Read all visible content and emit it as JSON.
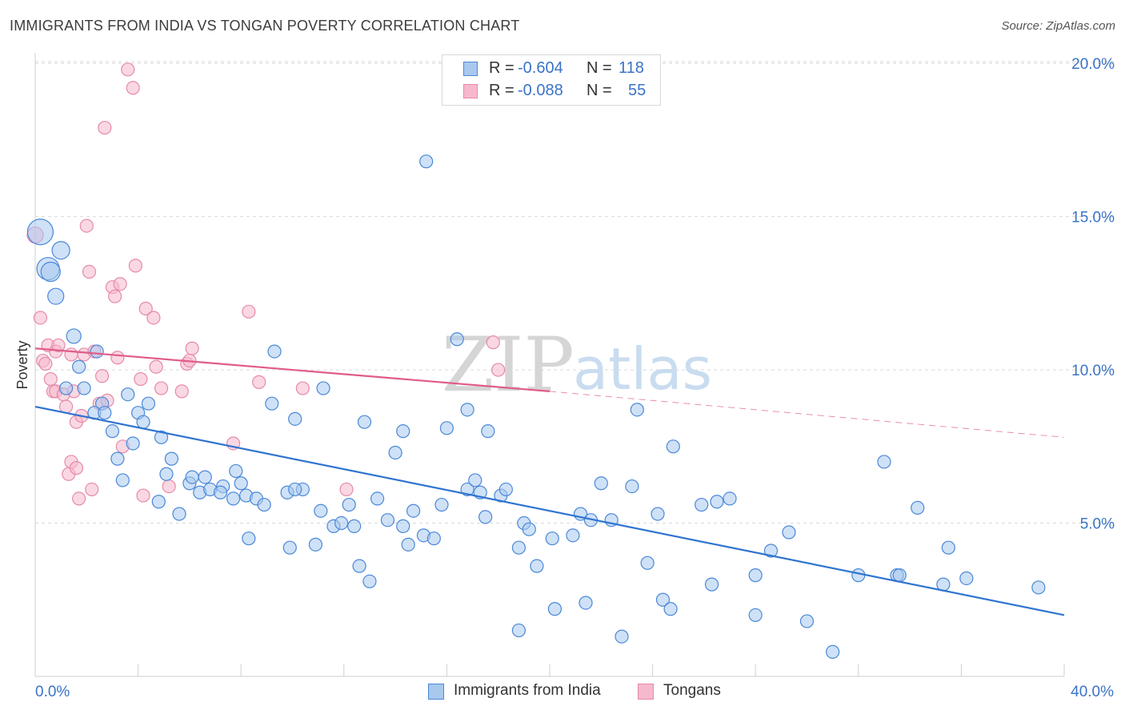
{
  "header": {
    "title": "IMMIGRANTS FROM INDIA VS TONGAN POVERTY CORRELATION CHART",
    "source": "Source: ZipAtlas.com"
  },
  "watermark": {
    "zip": "ZIP",
    "atlas": "atlas"
  },
  "legend_top": {
    "rows": [
      {
        "r_label": "R =",
        "r_value": "-0.604",
        "n_label": "N =",
        "n_value": "118"
      },
      {
        "r_label": "R =",
        "r_value": "-0.088",
        "n_label": "N =",
        "n_value": "55"
      }
    ]
  },
  "legend_bottom": {
    "india": "Immigrants from India",
    "tongans": "Tongans"
  },
  "colors": {
    "india_fill": "#a8c8ee",
    "india_stroke": "#4a88d8",
    "india_line": "#2f74d0",
    "tongan_fill": "#f6b8cc",
    "tongan_stroke": "#e58aa8",
    "tongan_line": "#e05c8a",
    "tick_text": "#3a73c6",
    "grid": "#d9d9d9"
  },
  "chart_data": {
    "type": "scatter",
    "title": "IMMIGRANTS FROM INDIA VS TONGAN POVERTY CORRELATION CHART",
    "xlabel": "",
    "ylabel": "Poverty",
    "xlim": [
      0,
      40
    ],
    "ylim": [
      0,
      20.5
    ],
    "x_ticks": [
      0,
      40
    ],
    "x_tick_labels": [
      "0.0%",
      "40.0%"
    ],
    "y_ticks": [
      5,
      10,
      15,
      20
    ],
    "y_tick_labels": [
      "5.0%",
      "10.0%",
      "15.0%",
      "20.0%"
    ],
    "grid": "horizontal dashed",
    "legend_placement": "top-center and bottom",
    "series": [
      {
        "name": "Immigrants from India",
        "r": -0.604,
        "n": 118,
        "trend": {
          "x": [
            0,
            40
          ],
          "y": [
            8.8,
            2.0
          ]
        },
        "points": [
          [
            0.2,
            14.5,
            16
          ],
          [
            0.5,
            13.3,
            14
          ],
          [
            0.6,
            13.2,
            12
          ],
          [
            1.0,
            13.9,
            11
          ],
          [
            0.8,
            12.4,
            10
          ],
          [
            1.5,
            11.1,
            9
          ],
          [
            2.4,
            10.6,
            8
          ],
          [
            1.7,
            10.1,
            8
          ],
          [
            1.2,
            9.4,
            8
          ],
          [
            1.9,
            9.4,
            8
          ],
          [
            2.6,
            8.9,
            8
          ],
          [
            2.3,
            8.6,
            8
          ],
          [
            2.7,
            8.6,
            8
          ],
          [
            3.6,
            9.2,
            8
          ],
          [
            4.4,
            8.9,
            8
          ],
          [
            4.0,
            8.6,
            8
          ],
          [
            4.2,
            8.3,
            8
          ],
          [
            3.0,
            8.0,
            8
          ],
          [
            3.8,
            7.6,
            8
          ],
          [
            4.9,
            7.8,
            8
          ],
          [
            3.2,
            7.1,
            8
          ],
          [
            5.3,
            7.1,
            8
          ],
          [
            3.4,
            6.4,
            8
          ],
          [
            5.1,
            6.6,
            8
          ],
          [
            6.0,
            6.3,
            8
          ],
          [
            6.1,
            6.5,
            8
          ],
          [
            6.6,
            6.5,
            8
          ],
          [
            4.8,
            5.7,
            8
          ],
          [
            6.4,
            6.0,
            8
          ],
          [
            6.8,
            6.1,
            8
          ],
          [
            7.3,
            6.2,
            8
          ],
          [
            7.8,
            6.7,
            8
          ],
          [
            8.0,
            6.3,
            8
          ],
          [
            7.2,
            6.0,
            8
          ],
          [
            7.7,
            5.8,
            8
          ],
          [
            8.2,
            5.9,
            8
          ],
          [
            8.6,
            5.8,
            8
          ],
          [
            8.9,
            5.6,
            8
          ],
          [
            9.8,
            6.0,
            8
          ],
          [
            10.4,
            6.1,
            8
          ],
          [
            10.1,
            6.1,
            8
          ],
          [
            5.6,
            5.3,
            8
          ],
          [
            9.3,
            10.6,
            8
          ],
          [
            9.2,
            8.9,
            8
          ],
          [
            10.1,
            8.4,
            8
          ],
          [
            11.2,
            9.4,
            8
          ],
          [
            8.3,
            4.5,
            8
          ],
          [
            9.9,
            4.2,
            8
          ],
          [
            10.9,
            4.3,
            8
          ],
          [
            11.1,
            5.4,
            8
          ],
          [
            11.6,
            4.9,
            8
          ],
          [
            11.9,
            5.0,
            8
          ],
          [
            12.2,
            5.6,
            8
          ],
          [
            12.4,
            4.9,
            8
          ],
          [
            12.6,
            3.6,
            8
          ],
          [
            12.8,
            8.3,
            8
          ],
          [
            13.0,
            3.1,
            8
          ],
          [
            13.3,
            5.8,
            8
          ],
          [
            13.7,
            5.1,
            8
          ],
          [
            14.0,
            7.3,
            8
          ],
          [
            14.3,
            4.9,
            8
          ],
          [
            14.3,
            8.0,
            8
          ],
          [
            14.5,
            4.3,
            8
          ],
          [
            14.7,
            5.4,
            8
          ],
          [
            15.1,
            4.6,
            8
          ],
          [
            15.5,
            4.5,
            8
          ],
          [
            15.8,
            5.6,
            8
          ],
          [
            16.0,
            8.1,
            8
          ],
          [
            15.2,
            16.8,
            8
          ],
          [
            16.4,
            11.0,
            8
          ],
          [
            16.8,
            8.7,
            8
          ],
          [
            16.8,
            6.1,
            8
          ],
          [
            17.1,
            6.4,
            8
          ],
          [
            17.3,
            6.0,
            8
          ],
          [
            17.5,
            5.2,
            8
          ],
          [
            17.6,
            8.0,
            8
          ],
          [
            18.1,
            5.9,
            8
          ],
          [
            18.3,
            6.1,
            8
          ],
          [
            18.8,
            4.2,
            8
          ],
          [
            19.0,
            5.0,
            8
          ],
          [
            19.2,
            4.8,
            8
          ],
          [
            19.5,
            3.6,
            8
          ],
          [
            18.8,
            1.5,
            8
          ],
          [
            20.1,
            4.5,
            8
          ],
          [
            20.2,
            2.2,
            8
          ],
          [
            20.9,
            4.6,
            8
          ],
          [
            21.2,
            5.3,
            8
          ],
          [
            21.4,
            2.4,
            8
          ],
          [
            21.6,
            5.1,
            8
          ],
          [
            22.0,
            6.3,
            8
          ],
          [
            22.4,
            5.1,
            8
          ],
          [
            22.8,
            1.3,
            8
          ],
          [
            23.2,
            6.2,
            8
          ],
          [
            23.4,
            8.7,
            8
          ],
          [
            23.8,
            3.7,
            8
          ],
          [
            24.2,
            5.3,
            8
          ],
          [
            24.4,
            2.5,
            8
          ],
          [
            24.7,
            2.2,
            8
          ],
          [
            24.8,
            7.5,
            8
          ],
          [
            25.9,
            5.6,
            8
          ],
          [
            26.5,
            5.7,
            8
          ],
          [
            26.3,
            3.0,
            8
          ],
          [
            27.0,
            5.8,
            8
          ],
          [
            28.0,
            3.3,
            8
          ],
          [
            28.0,
            2.0,
            8
          ],
          [
            28.6,
            4.1,
            8
          ],
          [
            29.3,
            4.7,
            8
          ],
          [
            30.0,
            1.8,
            8
          ],
          [
            31.0,
            0.8,
            8
          ],
          [
            32.0,
            3.3,
            8
          ],
          [
            33.0,
            7.0,
            8
          ],
          [
            33.5,
            3.3,
            8
          ],
          [
            33.6,
            3.3,
            8
          ],
          [
            34.3,
            5.5,
            8
          ],
          [
            35.3,
            3.0,
            8
          ],
          [
            35.5,
            4.2,
            8
          ],
          [
            36.2,
            3.2,
            8
          ],
          [
            39.0,
            2.9,
            8
          ]
        ]
      },
      {
        "name": "Tongans",
        "r": -0.088,
        "n": 55,
        "trend": {
          "x": [
            0,
            20
          ],
          "y": [
            10.7,
            9.3
          ],
          "dashed_to": [
            40,
            7.8
          ]
        },
        "points": [
          [
            0.0,
            14.4,
            10
          ],
          [
            0.2,
            11.7,
            8
          ],
          [
            0.3,
            10.3,
            8
          ],
          [
            0.4,
            10.2,
            8
          ],
          [
            0.5,
            10.8,
            8
          ],
          [
            0.6,
            9.7,
            8
          ],
          [
            0.7,
            9.3,
            8
          ],
          [
            0.8,
            9.3,
            8
          ],
          [
            0.8,
            10.6,
            8
          ],
          [
            0.9,
            10.8,
            8
          ],
          [
            1.1,
            9.2,
            8
          ],
          [
            1.2,
            8.8,
            8
          ],
          [
            1.3,
            6.6,
            8
          ],
          [
            1.4,
            7.0,
            8
          ],
          [
            1.4,
            10.5,
            8
          ],
          [
            1.5,
            9.3,
            8
          ],
          [
            1.6,
            6.8,
            8
          ],
          [
            1.6,
            8.3,
            8
          ],
          [
            1.7,
            5.8,
            8
          ],
          [
            1.8,
            8.5,
            8
          ],
          [
            1.9,
            10.5,
            8
          ],
          [
            2.0,
            14.7,
            8
          ],
          [
            2.1,
            13.2,
            8
          ],
          [
            2.2,
            6.1,
            8
          ],
          [
            2.3,
            10.6,
            8
          ],
          [
            2.5,
            8.9,
            8
          ],
          [
            2.6,
            9.8,
            8
          ],
          [
            2.7,
            17.9,
            8
          ],
          [
            2.8,
            9.0,
            8
          ],
          [
            3.0,
            12.7,
            8
          ],
          [
            3.1,
            12.4,
            8
          ],
          [
            3.2,
            10.4,
            8
          ],
          [
            3.3,
            12.8,
            8
          ],
          [
            3.4,
            7.5,
            8
          ],
          [
            3.6,
            19.8,
            8
          ],
          [
            3.8,
            19.2,
            8
          ],
          [
            3.9,
            13.4,
            8
          ],
          [
            4.1,
            9.7,
            8
          ],
          [
            4.2,
            5.9,
            8
          ],
          [
            4.3,
            12.0,
            8
          ],
          [
            4.6,
            11.7,
            8
          ],
          [
            4.7,
            10.1,
            8
          ],
          [
            4.9,
            9.4,
            8
          ],
          [
            5.2,
            6.2,
            8
          ],
          [
            5.7,
            9.3,
            8
          ],
          [
            5.9,
            10.2,
            8
          ],
          [
            6.0,
            10.3,
            8
          ],
          [
            6.1,
            10.7,
            8
          ],
          [
            7.7,
            7.6,
            8
          ],
          [
            8.3,
            11.9,
            8
          ],
          [
            8.7,
            9.6,
            8
          ],
          [
            10.4,
            9.4,
            8
          ],
          [
            12.1,
            6.1,
            8
          ],
          [
            17.8,
            10.9,
            8
          ],
          [
            18.0,
            10.0,
            8
          ]
        ]
      }
    ]
  }
}
